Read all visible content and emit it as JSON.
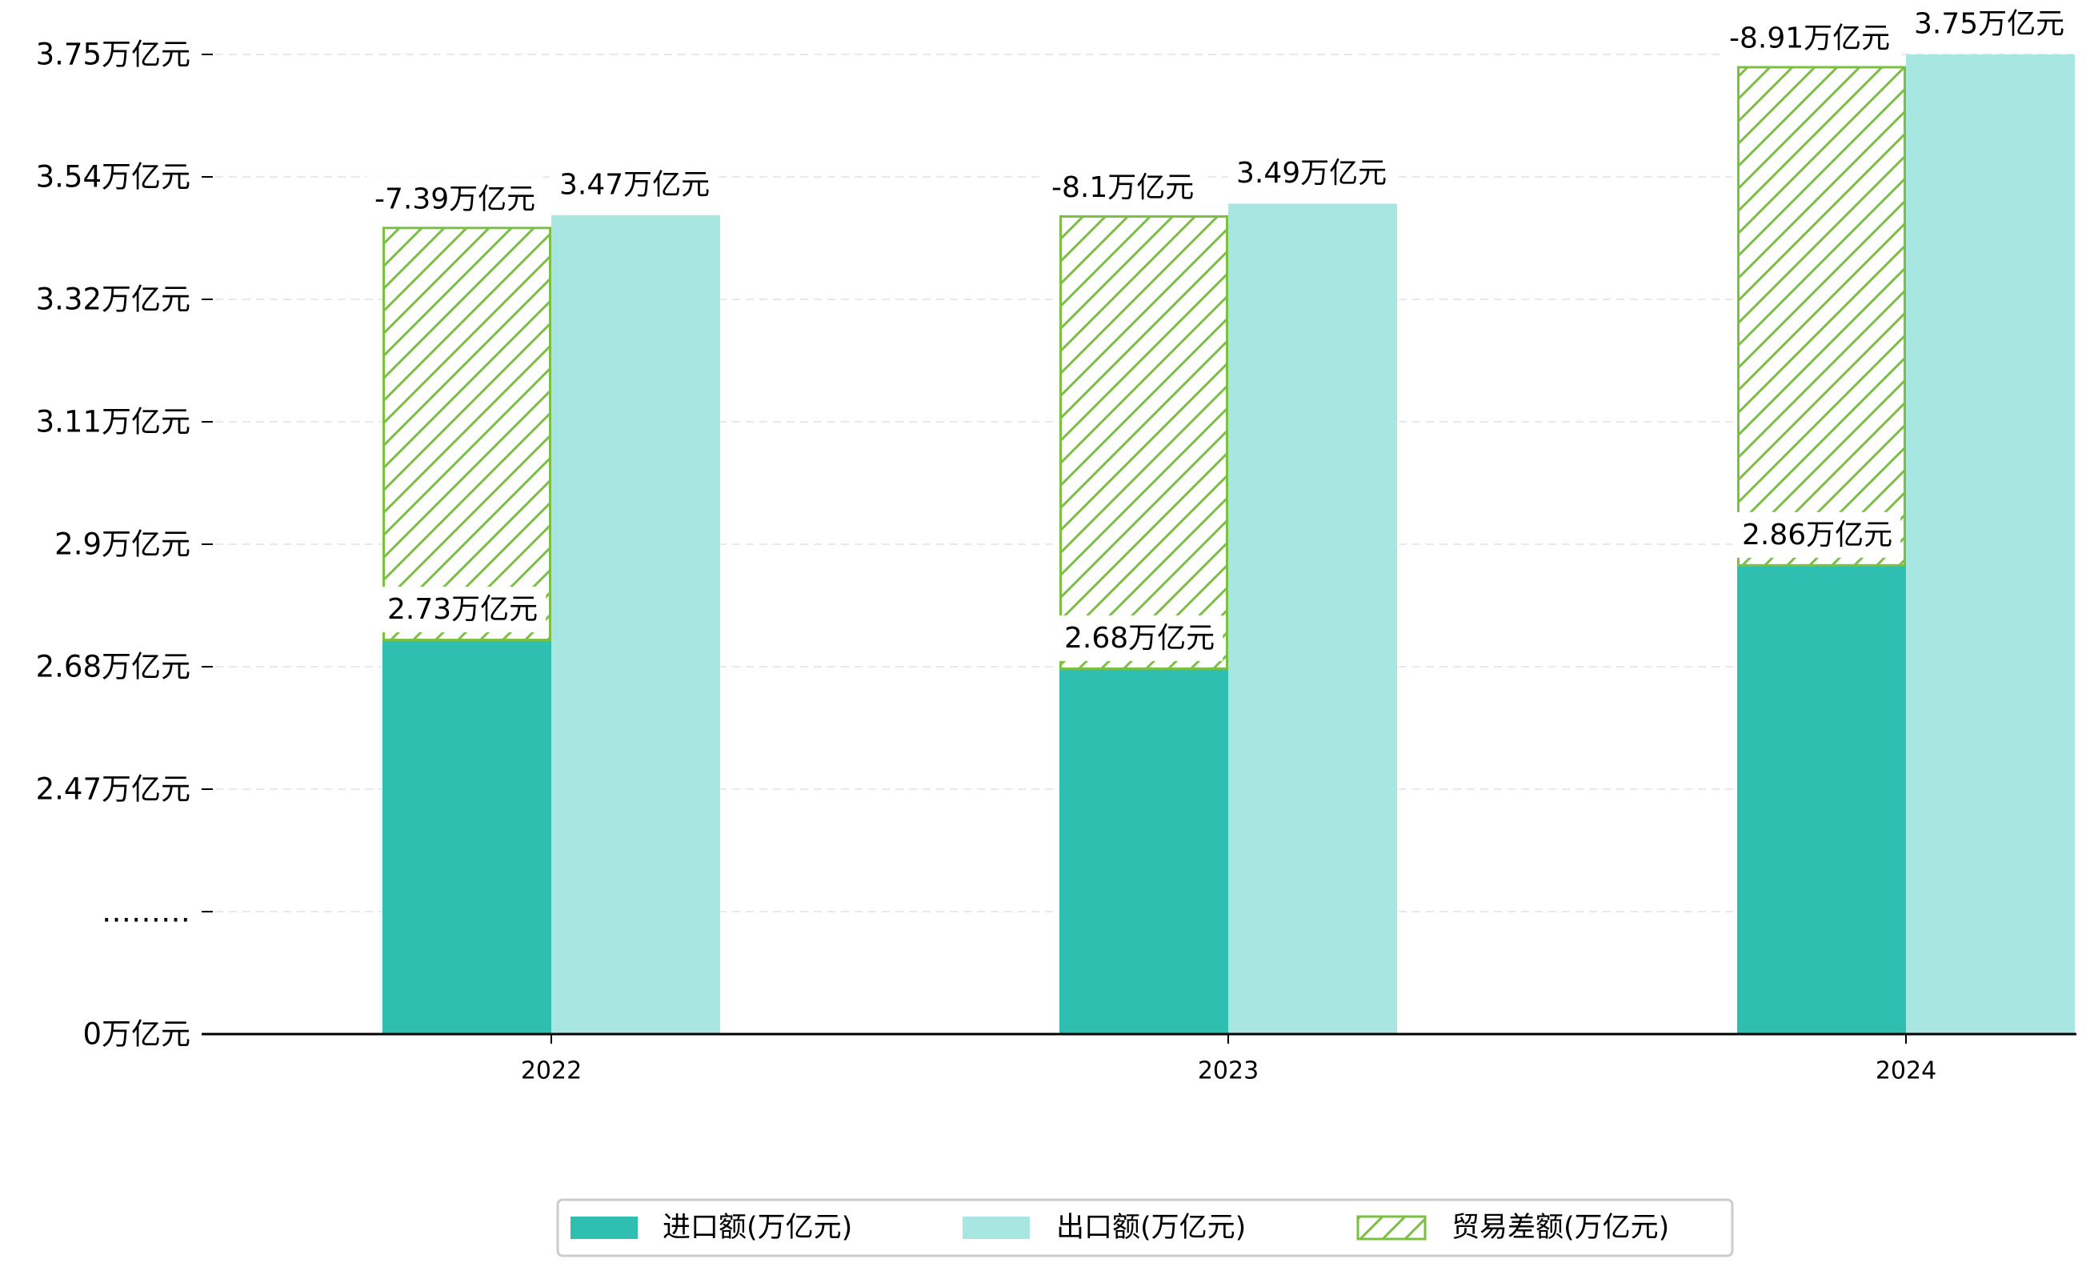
{
  "chart_data": {
    "type": "bar",
    "title": "",
    "xlabel": "",
    "ylabel": "",
    "categories": [
      "2022",
      "2023",
      "2024"
    ],
    "series": [
      {
        "name": "进口额(万亿元)",
        "color": "#2fbfb1",
        "values": [
          2.73,
          2.68,
          2.86
        ],
        "labels": [
          "2.73万亿元",
          "2.68万亿元",
          "2.86万亿元"
        ]
      },
      {
        "name": "出口额(万亿元)",
        "color": "#a8e7e1",
        "values": [
          3.47,
          3.49,
          3.75
        ],
        "labels": [
          "3.47万亿元",
          "3.49万亿元",
          "3.75万亿元"
        ]
      },
      {
        "name": "贸易差额(万亿元)",
        "color": "#7bc043",
        "pattern": "diagonal-hatch",
        "values": [
          -7.39,
          -8.1,
          -8.91
        ],
        "labels": [
          "-7.39万亿元",
          "-8.1万亿元",
          "-8.91万亿元"
        ]
      }
    ],
    "y_axis": {
      "broken": true,
      "ticks": [
        "0万亿元",
        "………",
        "2.47万亿元",
        "2.68万亿元",
        "2.9万亿元",
        "3.11万亿元",
        "3.32万亿元",
        "3.54万亿元",
        "3.75万亿元"
      ],
      "tick_values": [
        0,
        null,
        2.47,
        2.68,
        2.9,
        3.11,
        3.32,
        3.54,
        3.75
      ],
      "range_above_break": [
        2.26,
        3.75
      ]
    },
    "grid": true,
    "grid_style": "dashed horizontal",
    "legend_position": "bottom-center"
  }
}
